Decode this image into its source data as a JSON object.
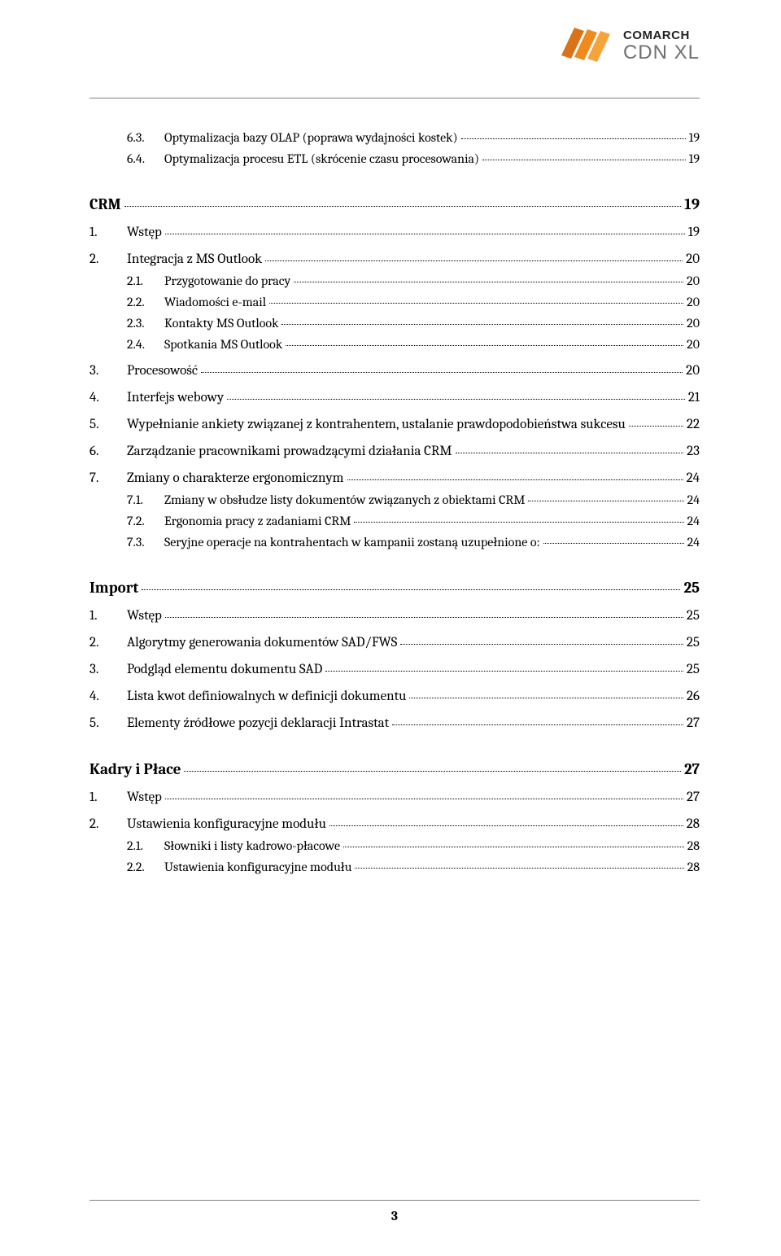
{
  "colors": {
    "text": "#000000",
    "rule": "#7f7f7f",
    "logo_orange_dark": "#d9731a",
    "logo_orange_mid": "#ef8a1f",
    "logo_orange_light": "#f6a33b",
    "logo_gray": "#6f6f6f",
    "bg": "#ffffff"
  },
  "typography": {
    "body_family": "Cambria, Georgia, 'Times New Roman', serif",
    "h1_size_pt": 14,
    "l1_size_pt": 12,
    "l2_size_pt": 11
  },
  "header": {
    "brand": "COMARCH",
    "product": "CDN XL"
  },
  "footer": {
    "page_number": "3"
  },
  "top_block": {
    "items": [
      {
        "lvl": 2,
        "num": "6.3.",
        "label": "Optymalizacja bazy OLAP (poprawa wydajności kostek)",
        "page": "19"
      },
      {
        "lvl": 2,
        "num": "6.4.",
        "label": "Optymalizacja procesu ETL (skrócenie czasu procesowania)",
        "page": "19"
      }
    ]
  },
  "sections": [
    {
      "title": "CRM",
      "page": "19",
      "items": [
        {
          "lvl": 1,
          "num": "1.",
          "label": "Wstęp",
          "page": "19"
        },
        {
          "lvl": 1,
          "num": "2.",
          "label": "Integracja z MS Outlook",
          "page": "20"
        },
        {
          "lvl": 2,
          "num": "2.1.",
          "label": "Przygotowanie do pracy",
          "page": "20"
        },
        {
          "lvl": 2,
          "num": "2.2.",
          "label": "Wiadomości e-mail",
          "page": "20"
        },
        {
          "lvl": 2,
          "num": "2.3.",
          "label": "Kontakty MS Outlook",
          "page": "20"
        },
        {
          "lvl": 2,
          "num": "2.4.",
          "label": "Spotkania MS Outlook",
          "page": "20"
        },
        {
          "lvl": 1,
          "num": "3.",
          "label": "Procesowość",
          "page": "20"
        },
        {
          "lvl": 1,
          "num": "4.",
          "label": "Interfejs webowy",
          "page": "21"
        },
        {
          "lvl": 1,
          "num": "5.",
          "label": "Wypełnianie ankiety związanej z kontrahentem, ustalanie prawdopodobieństwa sukcesu",
          "page": "22"
        },
        {
          "lvl": 1,
          "num": "6.",
          "label": "Zarządzanie pracownikami prowadzącymi działania CRM",
          "page": "23"
        },
        {
          "lvl": 1,
          "num": "7.",
          "label": "Zmiany o charakterze ergonomicznym",
          "page": "24"
        },
        {
          "lvl": 2,
          "num": "7.1.",
          "label": "Zmiany w obsłudze listy dokumentów związanych z obiektami CRM",
          "page": "24"
        },
        {
          "lvl": 2,
          "num": "7.2.",
          "label": "Ergonomia pracy z zadaniami CRM",
          "page": "24"
        },
        {
          "lvl": 2,
          "num": "7.3.",
          "label": "Seryjne operacje na kontrahentach w kampanii zostaną uzupełnione o:",
          "page": "24"
        }
      ]
    },
    {
      "title": "Import",
      "page": "25",
      "items": [
        {
          "lvl": 1,
          "num": "1.",
          "label": "Wstęp",
          "page": "25"
        },
        {
          "lvl": 1,
          "num": "2.",
          "label": "Algorytmy generowania dokumentów SAD/FWS",
          "page": "25"
        },
        {
          "lvl": 1,
          "num": "3.",
          "label": "Podgląd elementu dokumentu SAD",
          "page": "25"
        },
        {
          "lvl": 1,
          "num": "4.",
          "label": "Lista kwot definiowalnych w definicji dokumentu",
          "page": "26"
        },
        {
          "lvl": 1,
          "num": "5.",
          "label": "Elementy źródłowe pozycji deklaracji Intrastat",
          "page": "27"
        }
      ]
    },
    {
      "title": "Kadry i Płace",
      "page": "27",
      "items": [
        {
          "lvl": 1,
          "num": "1.",
          "label": "Wstęp",
          "page": "27"
        },
        {
          "lvl": 1,
          "num": "2.",
          "label": "Ustawienia konfiguracyjne modułu",
          "page": "28"
        },
        {
          "lvl": 2,
          "num": "2.1.",
          "label": "Słowniki i listy kadrowo-płacowe",
          "page": "28"
        },
        {
          "lvl": 2,
          "num": "2.2.",
          "label": "Ustawienia konfiguracyjne modułu",
          "page": "28"
        }
      ]
    }
  ]
}
